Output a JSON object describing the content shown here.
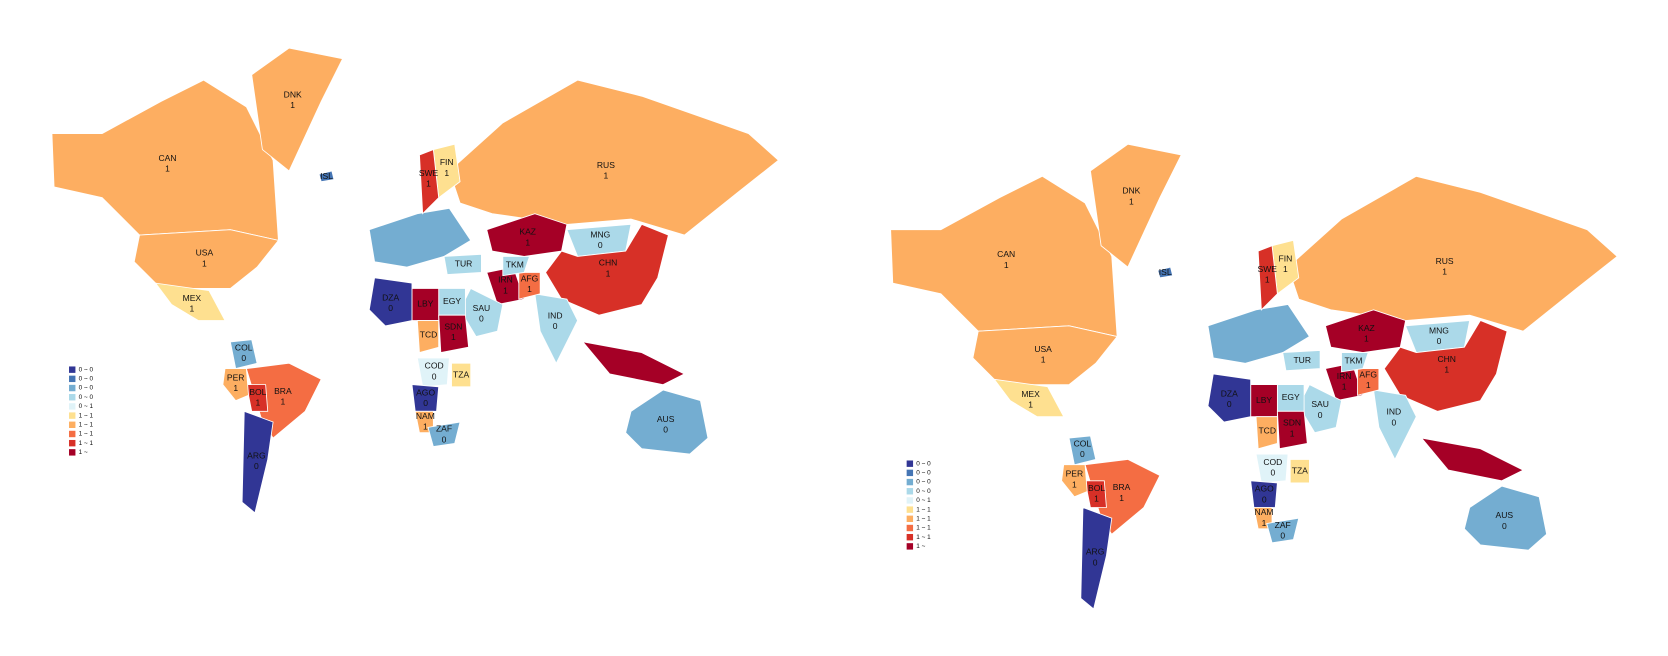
{
  "maps": [
    {
      "legend": [
        {
          "label": "0 ~ 0",
          "color": "#313695"
        },
        {
          "label": "0 ~ 0",
          "color": "#4575b4"
        },
        {
          "label": "0 ~ 0",
          "color": "#74add1"
        },
        {
          "label": "0 ~ 0",
          "color": "#abd9e9"
        },
        {
          "label": "0 ~ 1",
          "color": "#e0f3f8"
        },
        {
          "label": "1 ~ 1",
          "color": "#fee090"
        },
        {
          "label": "1 ~ 1",
          "color": "#fdae61"
        },
        {
          "label": "1 ~ 1",
          "color": "#f46d43"
        },
        {
          "label": "1 ~ 1",
          "color": "#d73027"
        },
        {
          "label": "1 ~",
          "color": "#a50026"
        }
      ],
      "countries": [
        {
          "code": "CAN",
          "value": 1,
          "color": "#fdae61"
        },
        {
          "code": "USA",
          "value": 1,
          "color": "#fdae61"
        },
        {
          "code": "MEX",
          "value": 1,
          "color": "#fee090"
        },
        {
          "code": "DNK",
          "value": 1,
          "color": "#fdae61"
        },
        {
          "code": "ISL",
          "color": "#4575b4"
        },
        {
          "code": "RUS",
          "value": 1,
          "color": "#fdae61"
        },
        {
          "code": "FIN",
          "value": 1,
          "color": "#fee090"
        },
        {
          "code": "SWE",
          "value": 1,
          "color": "#d73027"
        },
        {
          "code": "KAZ",
          "value": 1,
          "color": "#a50026"
        },
        {
          "code": "MNG",
          "value": 0,
          "color": "#abd9e9"
        },
        {
          "code": "CHN",
          "value": 1,
          "color": "#d73027"
        },
        {
          "code": "IND",
          "value": 0,
          "color": "#abd9e9"
        },
        {
          "code": "IRN",
          "value": 1,
          "color": "#a50026"
        },
        {
          "code": "AFG",
          "value": 1,
          "color": "#f46d43"
        },
        {
          "code": "TKM",
          "color": "#abd9e9"
        },
        {
          "code": "TUR",
          "color": "#abd9e9"
        },
        {
          "code": "SAU",
          "value": 0,
          "color": "#abd9e9"
        },
        {
          "code": "EGY",
          "color": "#abd9e9"
        },
        {
          "code": "LBY",
          "color": "#a50026"
        },
        {
          "code": "DZA",
          "value": 0,
          "color": "#313695"
        },
        {
          "code": "TCD",
          "color": "#fdae61"
        },
        {
          "code": "SDN",
          "value": 1,
          "color": "#a50026"
        },
        {
          "code": "COD",
          "value": 0,
          "color": "#e0f3f8"
        },
        {
          "code": "TZA",
          "color": "#fee090"
        },
        {
          "code": "AGO",
          "value": 0,
          "color": "#313695"
        },
        {
          "code": "NAM",
          "value": 1,
          "color": "#fdae61"
        },
        {
          "code": "ZAF",
          "value": 0,
          "color": "#74add1"
        },
        {
          "code": "BRA",
          "value": 1,
          "color": "#f46d43"
        },
        {
          "code": "BOL",
          "value": 1,
          "color": "#d73027"
        },
        {
          "code": "COL",
          "value": 0,
          "color": "#74add1"
        },
        {
          "code": "PER",
          "value": 1,
          "color": "#fdae61"
        },
        {
          "code": "ARG",
          "value": 0,
          "color": "#313695"
        },
        {
          "code": "AUS",
          "value": 0,
          "color": "#74add1"
        }
      ]
    },
    {
      "legend": [
        {
          "label": "0 ~ 0",
          "color": "#313695"
        },
        {
          "label": "0 ~ 0",
          "color": "#4575b4"
        },
        {
          "label": "0 ~ 0",
          "color": "#74add1"
        },
        {
          "label": "0 ~ 0",
          "color": "#abd9e9"
        },
        {
          "label": "0 ~ 1",
          "color": "#e0f3f8"
        },
        {
          "label": "1 ~ 1",
          "color": "#fee090"
        },
        {
          "label": "1 ~ 1",
          "color": "#fdae61"
        },
        {
          "label": "1 ~ 1",
          "color": "#f46d43"
        },
        {
          "label": "1 ~ 1",
          "color": "#d73027"
        },
        {
          "label": "1 ~",
          "color": "#a50026"
        }
      ],
      "countries": [
        {
          "code": "CAN",
          "value": 1,
          "color": "#fdae61"
        },
        {
          "code": "USA",
          "value": 1,
          "color": "#fdae61"
        },
        {
          "code": "MEX",
          "value": 1,
          "color": "#fee090"
        },
        {
          "code": "DNK",
          "value": 1,
          "color": "#fdae61"
        },
        {
          "code": "ISL",
          "color": "#4575b4"
        },
        {
          "code": "RUS",
          "value": 1,
          "color": "#fdae61"
        },
        {
          "code": "FIN",
          "value": 1,
          "color": "#fee090"
        },
        {
          "code": "SWE",
          "value": 1,
          "color": "#d73027"
        },
        {
          "code": "KAZ",
          "value": 1,
          "color": "#a50026"
        },
        {
          "code": "MNG",
          "value": 0,
          "color": "#abd9e9"
        },
        {
          "code": "CHN",
          "value": 1,
          "color": "#d73027"
        },
        {
          "code": "IND",
          "value": 0,
          "color": "#abd9e9"
        },
        {
          "code": "IRN",
          "value": 1,
          "color": "#a50026"
        },
        {
          "code": "AFG",
          "value": 1,
          "color": "#f46d43"
        },
        {
          "code": "TKM",
          "color": "#abd9e9"
        },
        {
          "code": "TUR",
          "color": "#abd9e9"
        },
        {
          "code": "SAU",
          "value": 0,
          "color": "#abd9e9"
        },
        {
          "code": "EGY",
          "color": "#abd9e9"
        },
        {
          "code": "LBY",
          "color": "#a50026"
        },
        {
          "code": "DZA",
          "value": 0,
          "color": "#313695"
        },
        {
          "code": "TCD",
          "color": "#fdae61"
        },
        {
          "code": "SDN",
          "value": 1,
          "color": "#a50026"
        },
        {
          "code": "COD",
          "value": 0,
          "color": "#e0f3f8"
        },
        {
          "code": "TZA",
          "color": "#fee090"
        },
        {
          "code": "AGO",
          "value": 0,
          "color": "#313695"
        },
        {
          "code": "NAM",
          "value": 1,
          "color": "#fdae61"
        },
        {
          "code": "ZAF",
          "value": 0,
          "color": "#74add1"
        },
        {
          "code": "BRA",
          "value": 1,
          "color": "#f46d43"
        },
        {
          "code": "BOL",
          "value": 1,
          "color": "#d73027"
        },
        {
          "code": "COL",
          "value": 0,
          "color": "#74add1"
        },
        {
          "code": "PER",
          "value": 1,
          "color": "#fdae61"
        },
        {
          "code": "ARG",
          "value": 0,
          "color": "#313695"
        },
        {
          "code": "AUS",
          "value": 0,
          "color": "#74add1"
        }
      ]
    }
  ]
}
